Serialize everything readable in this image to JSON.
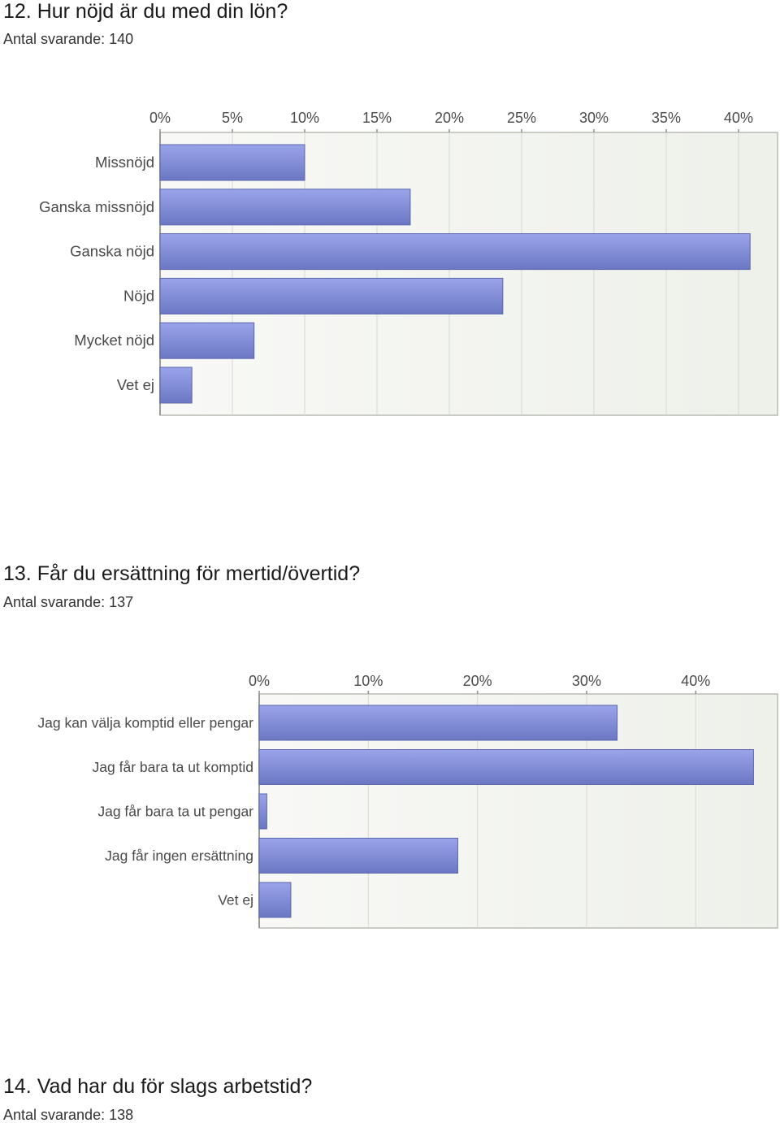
{
  "questions": [
    {
      "title": "12. Hur nöjd är du med din lön?",
      "respondents": "Antal svarande: 140"
    },
    {
      "title": "13. Får du ersättning för mertid/övertid?",
      "respondents": "Antal svarande: 137"
    },
    {
      "title": "14. Vad har du för slags arbetstid?",
      "respondents": "Antal svarande: 138"
    }
  ],
  "chart_data": [
    {
      "type": "bar",
      "orientation": "horizontal",
      "categories": [
        "Missnöjd",
        "Ganska missnöjd",
        "Ganska nöjd",
        "Nöjd",
        "Mycket nöjd",
        "Vet ej"
      ],
      "values": [
        10.0,
        17.3,
        40.8,
        23.7,
        6.5,
        2.2
      ],
      "xlim": [
        0,
        42.7
      ],
      "ticks": [
        0,
        5,
        10,
        15,
        20,
        25,
        30,
        35,
        40
      ],
      "tick_labels": [
        "0%",
        "5%",
        "10%",
        "15%",
        "20%",
        "25%",
        "30%",
        "35%",
        "40%"
      ],
      "grid": true,
      "colors": {
        "bar_top": "#99a4ea",
        "bar_bottom": "#6c77c4",
        "bar_edge": "#5c66ad",
        "plot_bg": "#eef0ea",
        "axis": "#b9bcb4"
      }
    },
    {
      "type": "bar",
      "orientation": "horizontal",
      "categories": [
        "Jag kan välja komptid eller pengar",
        "Jag får bara ta ut komptid",
        "Jag får bara ta ut pengar",
        "Jag får ingen ersättning",
        "Vet ej"
      ],
      "values": [
        32.8,
        45.3,
        0.7,
        18.2,
        2.9
      ],
      "xlim": [
        0,
        47.5
      ],
      "ticks": [
        0,
        10,
        20,
        30,
        40
      ],
      "tick_labels": [
        "0%",
        "10%",
        "20%",
        "30%",
        "40%"
      ],
      "grid": true,
      "colors": {
        "bar_top": "#99a4ea",
        "bar_bottom": "#6c77c4",
        "bar_edge": "#5c66ad",
        "plot_bg": "#eef0ea",
        "axis": "#b9bcb4"
      }
    }
  ]
}
